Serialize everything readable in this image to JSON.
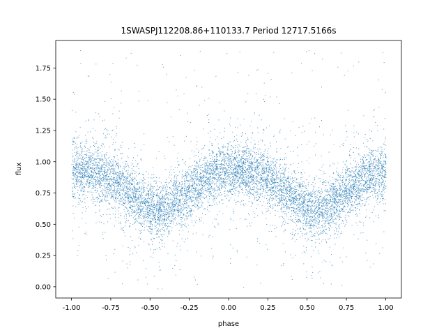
{
  "chart_data": {
    "type": "scatter",
    "title": "1SWASPJ112208.86+110133.7 Period 12717.5166s",
    "xlabel": "phase",
    "ylabel": "flux",
    "xlim": [
      -1.1,
      1.1
    ],
    "ylim": [
      -0.09,
      1.97
    ],
    "xticks": [
      "-1.00",
      "-0.75",
      "-0.50",
      "-0.25",
      "0.00",
      "0.25",
      "0.50",
      "0.75",
      "1.00"
    ],
    "yticks": [
      "0.00",
      "0.25",
      "0.50",
      "0.75",
      "1.00",
      "1.25",
      "1.50",
      "1.75"
    ],
    "grid": false,
    "point_color": "#1f77b4",
    "series": [
      {
        "x": [
          -1.0,
          -0.9,
          -0.8,
          -0.7,
          -0.6,
          -0.5,
          -0.45,
          -0.4,
          -0.3,
          -0.2,
          -0.1,
          0.0,
          0.1,
          0.2,
          0.3,
          0.4,
          0.5,
          0.55,
          0.6,
          0.7,
          0.8,
          0.9,
          1.0
        ],
        "y": [
          0.93,
          0.93,
          0.9,
          0.82,
          0.72,
          0.62,
          0.6,
          0.62,
          0.72,
          0.82,
          0.9,
          0.93,
          0.93,
          0.9,
          0.82,
          0.72,
          0.62,
          0.6,
          0.62,
          0.72,
          0.82,
          0.9,
          0.93
        ]
      }
    ]
  }
}
